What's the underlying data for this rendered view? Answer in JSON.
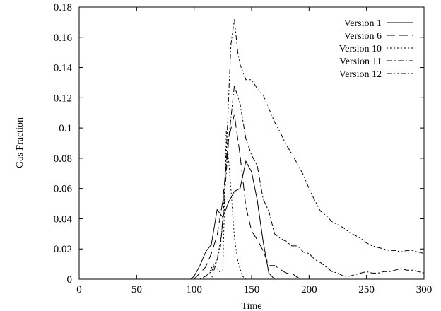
{
  "chart_data": {
    "type": "line",
    "title": "",
    "xlabel": "Time",
    "ylabel": "Gas Fraction",
    "xlim": [
      0,
      300
    ],
    "ylim": [
      0,
      0.18
    ],
    "xticks": [
      0,
      50,
      100,
      150,
      200,
      250,
      300
    ],
    "yticks": [
      0,
      0.02,
      0.04,
      0.06,
      0.08,
      0.1,
      0.12,
      0.14,
      0.16,
      0.18
    ],
    "xtick_labels": [
      "0",
      "50",
      "100",
      "150",
      "200",
      "250",
      "300"
    ],
    "ytick_labels": [
      "0",
      "0.02",
      "0.04",
      "0.06",
      "0.08",
      "0.1",
      "0.12",
      "0.14",
      "0.16",
      "0.18"
    ],
    "grid": false,
    "legend_position": "top-right",
    "series": [
      {
        "name": "Version 1",
        "dash": "solid",
        "x": [
          0,
          97,
          100,
          105,
          110,
          115,
          120,
          125,
          130,
          135,
          140,
          145,
          150,
          155,
          160,
          165,
          170,
          300
        ],
        "y": [
          0,
          0,
          0.002,
          0.009,
          0.018,
          0.023,
          0.046,
          0.041,
          0.051,
          0.058,
          0.06,
          0.078,
          0.071,
          0.052,
          0.025,
          0.004,
          0,
          0
        ]
      },
      {
        "name": "Version 6",
        "dash": "long-dash",
        "x": [
          0,
          100,
          105,
          110,
          115,
          120,
          125,
          130,
          135,
          140,
          145,
          150,
          155,
          160,
          165,
          170,
          180,
          185,
          190,
          195,
          300
        ],
        "y": [
          0,
          0,
          0.004,
          0.008,
          0.017,
          0.029,
          0.052,
          0.093,
          0.109,
          0.082,
          0.048,
          0.032,
          0.026,
          0.019,
          0.009,
          0.009,
          0.004,
          0.004,
          0.001,
          0,
          0
        ]
      },
      {
        "name": "Version 10",
        "dash": "dotted",
        "x": [
          0,
          108,
          112,
          117,
          122,
          125,
          128,
          132,
          135,
          138,
          142,
          145,
          300
        ],
        "y": [
          0,
          0,
          0.003,
          0.01,
          0.005,
          0.006,
          0.098,
          0.06,
          0.028,
          0.012,
          0.002,
          0,
          0
        ]
      },
      {
        "name": "Version 11",
        "dash": "dash-dot",
        "x": [
          0,
          105,
          110,
          115,
          120,
          123,
          126,
          130,
          135,
          140,
          145,
          150,
          155,
          160,
          165,
          170,
          175,
          180,
          185,
          190,
          195,
          200,
          205,
          210,
          215,
          220,
          225,
          230,
          235,
          240,
          245,
          250,
          255,
          260,
          265,
          270,
          275,
          280,
          285,
          290,
          295,
          300
        ],
        "y": [
          0,
          0,
          0.002,
          0.005,
          0.013,
          0.022,
          0.05,
          0.092,
          0.128,
          0.116,
          0.093,
          0.082,
          0.075,
          0.053,
          0.045,
          0.03,
          0.027,
          0.025,
          0.022,
          0.022,
          0.018,
          0.017,
          0.013,
          0.011,
          0.008,
          0.005,
          0.004,
          0.002,
          0.002,
          0.003,
          0.004,
          0.005,
          0.004,
          0.004,
          0.005,
          0.005,
          0.006,
          0.007,
          0.006,
          0.006,
          0.005,
          0.004
        ]
      },
      {
        "name": "Version 12",
        "dash": "dash-dot-dot",
        "x": [
          0,
          115,
          120,
          124,
          127,
          130,
          132,
          135,
          138,
          140,
          145,
          150,
          155,
          160,
          165,
          170,
          175,
          180,
          185,
          190,
          195,
          200,
          205,
          210,
          215,
          220,
          225,
          230,
          235,
          240,
          245,
          250,
          255,
          260,
          265,
          270,
          275,
          280,
          285,
          290,
          295,
          300
        ],
        "y": [
          0,
          0,
          0.013,
          0.03,
          0.065,
          0.12,
          0.155,
          0.172,
          0.15,
          0.142,
          0.132,
          0.132,
          0.126,
          0.122,
          0.113,
          0.104,
          0.097,
          0.089,
          0.083,
          0.076,
          0.069,
          0.06,
          0.052,
          0.045,
          0.042,
          0.038,
          0.036,
          0.034,
          0.031,
          0.029,
          0.027,
          0.024,
          0.022,
          0.021,
          0.02,
          0.019,
          0.019,
          0.018,
          0.019,
          0.019,
          0.018,
          0.017
        ]
      }
    ]
  },
  "colors": {
    "line": "#000000",
    "background": "#ffffff"
  }
}
